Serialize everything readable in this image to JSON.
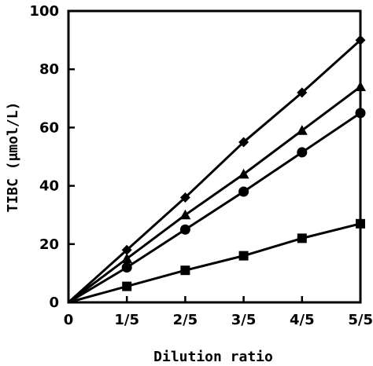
{
  "chart_data": {
    "type": "line",
    "xlabel": "Dilution ratio",
    "ylabel": "TIBC (μmol/L)",
    "x_ticks": [
      "0",
      "1/5",
      "2/5",
      "3/5",
      "4/5",
      "5/5"
    ],
    "x_values": [
      0,
      0.2,
      0.4,
      0.6,
      0.8,
      1.0
    ],
    "ylim": [
      0,
      100
    ],
    "y_ticks": [
      0,
      20,
      40,
      60,
      80,
      100
    ],
    "grid": false,
    "series": [
      {
        "marker": "diamond",
        "color": "#000000",
        "values": [
          0,
          18,
          36,
          55,
          72,
          90
        ]
      },
      {
        "marker": "triangle",
        "color": "#000000",
        "values": [
          0,
          15,
          30,
          44,
          59,
          74
        ]
      },
      {
        "marker": "circle",
        "color": "#000000",
        "values": [
          0,
          12,
          25,
          38,
          51.5,
          65
        ]
      },
      {
        "marker": "square",
        "color": "#000000",
        "values": [
          0,
          5.5,
          11,
          16,
          22,
          27
        ]
      }
    ]
  }
}
